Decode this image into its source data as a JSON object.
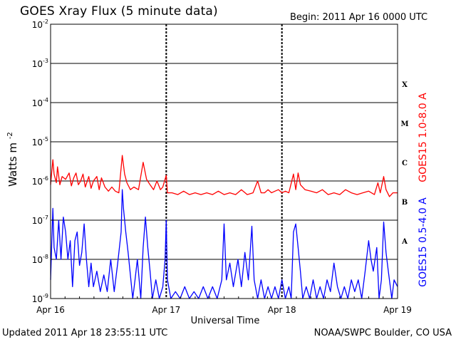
{
  "header": {
    "title": "GOES Xray Flux (5 minute data)",
    "begin": "Begin:  2011 Apr 16 0000 UTC"
  },
  "footer": {
    "updated": "Updated 2011 Apr 18 23:55:11 UTC",
    "credit": "NOAA/SWPC Boulder, CO USA"
  },
  "chart_data": {
    "type": "line",
    "title": "GOES Xray Flux (5 minute data)",
    "xlabel": "Universal Time",
    "ylabel": "Watts m",
    "ylabel_superscript": "-2",
    "yscale": "log",
    "ylim": [
      1e-09,
      0.01
    ],
    "y_ticks": [
      {
        "mant": "10",
        "exp": "-9",
        "value": 1e-09
      },
      {
        "mant": "10",
        "exp": "-8",
        "value": 1e-08
      },
      {
        "mant": "10",
        "exp": "-7",
        "value": 1e-07
      },
      {
        "mant": "10",
        "exp": "-6",
        "value": 1e-06
      },
      {
        "mant": "10",
        "exp": "-5",
        "value": 1e-05
      },
      {
        "mant": "10",
        "exp": "-4",
        "value": 0.0001
      },
      {
        "mant": "10",
        "exp": "-3",
        "value": 0.001
      },
      {
        "mant": "10",
        "exp": "-2",
        "value": 0.01
      }
    ],
    "x_range_days": [
      0,
      3
    ],
    "x_ticks": [
      {
        "label": "Apr 16",
        "day": 0
      },
      {
        "label": "Apr 17",
        "day": 1
      },
      {
        "label": "Apr 18",
        "day": 2
      },
      {
        "label": "Apr 19",
        "day": 3
      }
    ],
    "flare_classes": [
      {
        "label": "A",
        "value": 3e-08
      },
      {
        "label": "B",
        "value": 3e-07
      },
      {
        "label": "C",
        "value": 3e-06
      },
      {
        "label": "M",
        "value": 3e-05
      },
      {
        "label": "X",
        "value": 0.0003
      }
    ],
    "grid": "horizontal at each decade from 1e-8 to 1e-3; dashed vertical at each day",
    "series": [
      {
        "name": "GOES15 1.0-8.0 A",
        "color": "#ff0000",
        "points": [
          [
            0.0,
            8e-07
          ],
          [
            0.02,
            3.5e-06
          ],
          [
            0.03,
            1.5e-06
          ],
          [
            0.05,
            9e-07
          ],
          [
            0.06,
            2.3e-06
          ],
          [
            0.08,
            8e-07
          ],
          [
            0.1,
            1.3e-06
          ],
          [
            0.13,
            1.1e-06
          ],
          [
            0.16,
            1.6e-06
          ],
          [
            0.18,
            7.5e-07
          ],
          [
            0.2,
            1.2e-06
          ],
          [
            0.22,
            1.6e-06
          ],
          [
            0.24,
            8e-07
          ],
          [
            0.26,
            1e-06
          ],
          [
            0.28,
            1.5e-06
          ],
          [
            0.3,
            7e-07
          ],
          [
            0.33,
            1.3e-06
          ],
          [
            0.35,
            6.5e-07
          ],
          [
            0.37,
            1e-06
          ],
          [
            0.4,
            1.3e-06
          ],
          [
            0.42,
            6e-07
          ],
          [
            0.44,
            1.2e-06
          ],
          [
            0.47,
            7e-07
          ],
          [
            0.5,
            5.5e-07
          ],
          [
            0.53,
            7e-07
          ],
          [
            0.56,
            5.5e-07
          ],
          [
            0.59,
            5e-07
          ],
          [
            0.62,
            4.5e-06
          ],
          [
            0.64,
            1.5e-06
          ],
          [
            0.66,
            9e-07
          ],
          [
            0.69,
            6e-07
          ],
          [
            0.72,
            7e-07
          ],
          [
            0.76,
            6e-07
          ],
          [
            0.8,
            3e-06
          ],
          [
            0.83,
            1.1e-06
          ],
          [
            0.86,
            8e-07
          ],
          [
            0.89,
            6e-07
          ],
          [
            0.92,
            1e-06
          ],
          [
            0.95,
            6e-07
          ],
          [
            0.97,
            7e-07
          ],
          [
            1.0,
            1.4e-06
          ],
          [
            1.01,
            5e-07
          ],
          [
            1.05,
            5e-07
          ],
          [
            1.1,
            4.5e-07
          ],
          [
            1.15,
            5.5e-07
          ],
          [
            1.2,
            4.5e-07
          ],
          [
            1.25,
            5e-07
          ],
          [
            1.3,
            4.5e-07
          ],
          [
            1.35,
            5e-07
          ],
          [
            1.4,
            4.5e-07
          ],
          [
            1.45,
            5.5e-07
          ],
          [
            1.5,
            4.5e-07
          ],
          [
            1.55,
            5e-07
          ],
          [
            1.6,
            4.5e-07
          ],
          [
            1.65,
            6e-07
          ],
          [
            1.7,
            4.5e-07
          ],
          [
            1.75,
            5e-07
          ],
          [
            1.79,
            1e-06
          ],
          [
            1.82,
            5e-07
          ],
          [
            1.85,
            5e-07
          ],
          [
            1.88,
            6e-07
          ],
          [
            1.91,
            5e-07
          ],
          [
            1.94,
            5.5e-07
          ],
          [
            1.97,
            6e-07
          ],
          [
            2.0,
            5e-07
          ],
          [
            2.03,
            5.5e-07
          ],
          [
            2.06,
            5e-07
          ],
          [
            2.1,
            1.5e-06
          ],
          [
            2.12,
            6e-07
          ],
          [
            2.14,
            1.6e-06
          ],
          [
            2.16,
            8e-07
          ],
          [
            2.2,
            6e-07
          ],
          [
            2.25,
            5.5e-07
          ],
          [
            2.3,
            5e-07
          ],
          [
            2.35,
            6e-07
          ],
          [
            2.4,
            4.5e-07
          ],
          [
            2.45,
            5e-07
          ],
          [
            2.5,
            4.5e-07
          ],
          [
            2.55,
            6e-07
          ],
          [
            2.6,
            5e-07
          ],
          [
            2.65,
            4.5e-07
          ],
          [
            2.7,
            5e-07
          ],
          [
            2.75,
            5.5e-07
          ],
          [
            2.8,
            4.5e-07
          ],
          [
            2.83,
            9e-07
          ],
          [
            2.85,
            5e-07
          ],
          [
            2.88,
            1.3e-06
          ],
          [
            2.9,
            6e-07
          ],
          [
            2.93,
            4e-07
          ],
          [
            2.96,
            5e-07
          ],
          [
            3.0,
            5e-07
          ]
        ]
      },
      {
        "name": "GOES15 0.5-4.0 A",
        "color": "#0000ff",
        "points": [
          [
            0.0,
            3e-09
          ],
          [
            0.02,
            2e-07
          ],
          [
            0.03,
            2e-08
          ],
          [
            0.05,
            1e-08
          ],
          [
            0.07,
            1e-07
          ],
          [
            0.09,
            1e-08
          ],
          [
            0.11,
            1.2e-07
          ],
          [
            0.13,
            5e-08
          ],
          [
            0.15,
            1e-08
          ],
          [
            0.17,
            3e-08
          ],
          [
            0.19,
            2e-09
          ],
          [
            0.21,
            3e-08
          ],
          [
            0.23,
            5e-08
          ],
          [
            0.25,
            7e-09
          ],
          [
            0.27,
            1.5e-08
          ],
          [
            0.29,
            8e-08
          ],
          [
            0.31,
            1e-08
          ],
          [
            0.33,
            2e-09
          ],
          [
            0.35,
            8e-09
          ],
          [
            0.37,
            2e-09
          ],
          [
            0.4,
            5e-09
          ],
          [
            0.43,
            1.5e-09
          ],
          [
            0.46,
            4e-09
          ],
          [
            0.49,
            1.5e-09
          ],
          [
            0.52,
            1e-08
          ],
          [
            0.55,
            1.5e-09
          ],
          [
            0.58,
            8e-09
          ],
          [
            0.61,
            5e-08
          ],
          [
            0.62,
            6e-07
          ],
          [
            0.63,
            2e-07
          ],
          [
            0.65,
            5e-08
          ],
          [
            0.67,
            1.5e-08
          ],
          [
            0.69,
            4e-09
          ],
          [
            0.71,
            1e-09
          ],
          [
            0.73,
            3e-09
          ],
          [
            0.75,
            1e-08
          ],
          [
            0.78,
            1e-09
          ],
          [
            0.8,
            2e-08
          ],
          [
            0.82,
            1.2e-07
          ],
          [
            0.84,
            2e-08
          ],
          [
            0.86,
            5e-09
          ],
          [
            0.88,
            1e-09
          ],
          [
            0.91,
            3e-09
          ],
          [
            0.94,
            1e-09
          ],
          [
            0.97,
            2e-09
          ],
          [
            0.99,
            1e-08
          ],
          [
            1.0,
            1e-07
          ],
          [
            1.01,
            3e-09
          ],
          [
            1.04,
            1e-09
          ],
          [
            1.08,
            1.5e-09
          ],
          [
            1.12,
            1e-09
          ],
          [
            1.16,
            2e-09
          ],
          [
            1.2,
            1e-09
          ],
          [
            1.24,
            1.5e-09
          ],
          [
            1.28,
            1e-09
          ],
          [
            1.32,
            2e-09
          ],
          [
            1.36,
            1e-09
          ],
          [
            1.4,
            2e-09
          ],
          [
            1.44,
            1e-09
          ],
          [
            1.48,
            3e-09
          ],
          [
            1.5,
            8e-08
          ],
          [
            1.52,
            3e-09
          ],
          [
            1.55,
            8e-09
          ],
          [
            1.58,
            2e-09
          ],
          [
            1.62,
            1e-08
          ],
          [
            1.65,
            2e-09
          ],
          [
            1.68,
            1.5e-08
          ],
          [
            1.71,
            3e-09
          ],
          [
            1.74,
            7e-08
          ],
          [
            1.76,
            3e-09
          ],
          [
            1.79,
            1e-09
          ],
          [
            1.82,
            3e-09
          ],
          [
            1.85,
            1e-09
          ],
          [
            1.88,
            2e-09
          ],
          [
            1.91,
            1e-09
          ],
          [
            1.94,
            2e-09
          ],
          [
            1.97,
            1e-09
          ],
          [
            2.0,
            3e-09
          ],
          [
            2.03,
            1e-09
          ],
          [
            2.06,
            2e-09
          ],
          [
            2.08,
            1e-09
          ],
          [
            2.1,
            5e-08
          ],
          [
            2.12,
            8e-08
          ],
          [
            2.14,
            2e-08
          ],
          [
            2.16,
            5e-09
          ],
          [
            2.18,
            1e-09
          ],
          [
            2.21,
            2e-09
          ],
          [
            2.24,
            1e-09
          ],
          [
            2.27,
            3e-09
          ],
          [
            2.3,
            1e-09
          ],
          [
            2.33,
            2e-09
          ],
          [
            2.36,
            1e-09
          ],
          [
            2.39,
            3e-09
          ],
          [
            2.42,
            1.5e-09
          ],
          [
            2.45,
            8e-09
          ],
          [
            2.48,
            2e-09
          ],
          [
            2.51,
            1e-09
          ],
          [
            2.54,
            2e-09
          ],
          [
            2.57,
            1e-09
          ],
          [
            2.6,
            3e-09
          ],
          [
            2.63,
            1.5e-09
          ],
          [
            2.66,
            3e-09
          ],
          [
            2.69,
            1e-09
          ],
          [
            2.72,
            5e-09
          ],
          [
            2.75,
            3e-08
          ],
          [
            2.77,
            1e-08
          ],
          [
            2.79,
            5e-09
          ],
          [
            2.82,
            2e-08
          ],
          [
            2.84,
            1e-09
          ],
          [
            2.86,
            3e-09
          ],
          [
            2.88,
            9e-08
          ],
          [
            2.9,
            1.5e-08
          ],
          [
            2.92,
            5e-09
          ],
          [
            2.95,
            1e-09
          ],
          [
            2.97,
            3e-09
          ],
          [
            3.0,
            2e-09
          ]
        ]
      }
    ]
  }
}
